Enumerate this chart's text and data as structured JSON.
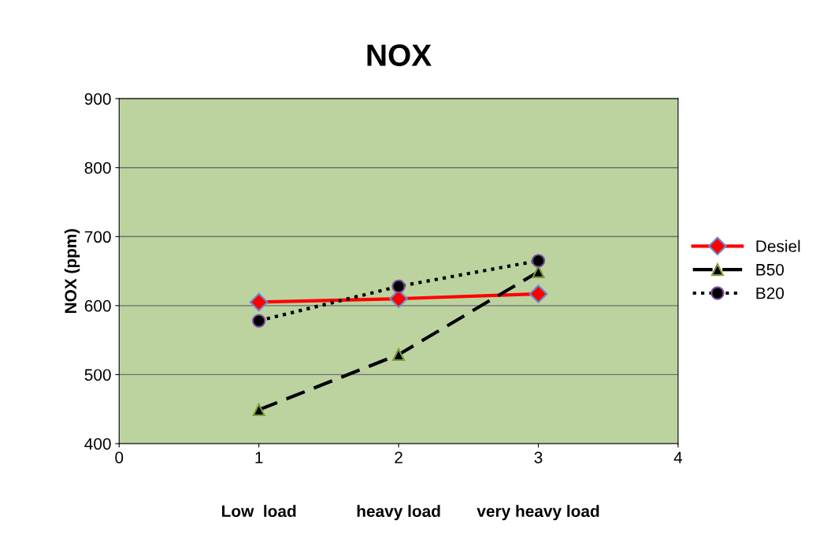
{
  "chart_data": {
    "type": "line",
    "title": "NOX",
    "ylabel": "NOX (ppm)",
    "x": [
      1,
      2,
      3
    ],
    "xlim": [
      0,
      4
    ],
    "xticks": [
      0,
      1,
      2,
      3,
      4
    ],
    "ylim": [
      400,
      900
    ],
    "yticks": [
      400,
      500,
      600,
      700,
      800,
      900
    ],
    "grid": "y",
    "legend": "right",
    "series": [
      {
        "name": "Desiel",
        "color": "#ff0000",
        "marker": "diamond",
        "line_style": "solid",
        "values": [
          605,
          610,
          617
        ]
      },
      {
        "name": "B50",
        "color": "#000000",
        "marker": "triangle",
        "line_style": "dashed",
        "values": [
          449,
          529,
          649
        ]
      },
      {
        "name": "B20",
        "color": "#000000",
        "marker": "circle",
        "line_style": "dotted",
        "values": [
          578,
          628,
          665
        ]
      }
    ],
    "annotations": [
      "Low  load",
      "heavy load",
      "very heavy load"
    ]
  }
}
